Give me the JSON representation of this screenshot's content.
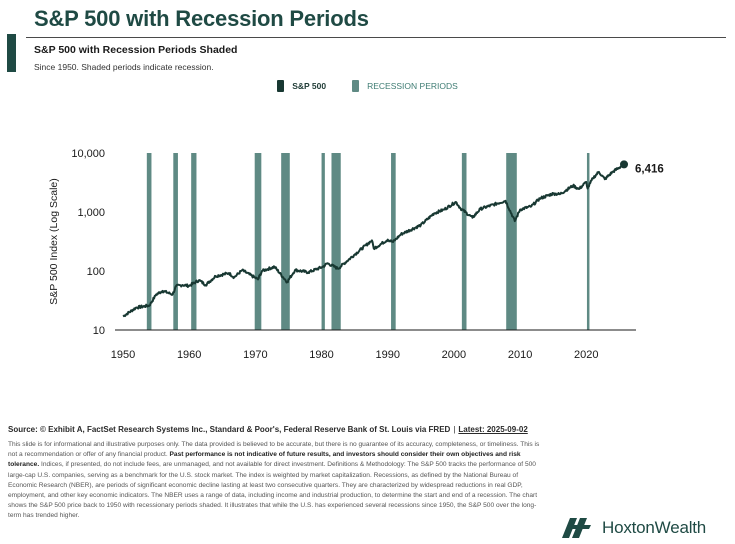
{
  "header": {
    "title": "S&P 500 with Recession Periods",
    "subtitle": "S&P 500 with Recession Periods Shaded",
    "note": "Since 1950. Shaded periods indicate recession."
  },
  "legend": {
    "series_label": "S&P 500",
    "recession_label": "RECESSION PERIODS"
  },
  "colors": {
    "line": "#183832",
    "recession": "#5f8a84",
    "title": "#1f4a44"
  },
  "chart_data": {
    "type": "line",
    "title": "",
    "xlabel": "",
    "ylabel": "S&P 500 Index (Log Scale)",
    "yscale": "log",
    "ylim": [
      10,
      10000
    ],
    "xlim": [
      1950,
      2026
    ],
    "xticks": [
      1950,
      1960,
      1970,
      1980,
      1990,
      2000,
      2010,
      2020
    ],
    "yticks": [
      {
        "value": 10,
        "label": "10"
      },
      {
        "value": 100,
        "label": "100"
      },
      {
        "value": 1000,
        "label": "1,000"
      },
      {
        "value": 10000,
        "label": "10,000"
      }
    ],
    "end_label": "6,416",
    "grid": false,
    "legend_position": "top-center",
    "series": [
      {
        "name": "S&P 500",
        "x": [
          1950,
          1952,
          1954,
          1955,
          1956,
          1957.5,
          1958,
          1959,
          1960,
          1961.5,
          1962.5,
          1964,
          1966,
          1966.8,
          1968,
          1970.4,
          1971,
          1972.9,
          1974.8,
          1976,
          1978,
          1980.2,
          1980.9,
          1982.5,
          1985,
          1987.6,
          1987.9,
          1990,
          1990.8,
          1992,
          1995,
          1997,
          1998.5,
          2000.3,
          2001,
          2002.8,
          2004,
          2007.8,
          2009.2,
          2010,
          2011.7,
          2013,
          2015,
          2016,
          2018,
          2018.9,
          2020,
          2020.2,
          2021,
          2021.9,
          2022.8,
          2024,
          2025.7
        ],
        "values": [
          17,
          24,
          26,
          40,
          46,
          40,
          55,
          58,
          56,
          70,
          58,
          82,
          92,
          78,
          103,
          72,
          100,
          118,
          65,
          104,
          95,
          118,
          135,
          110,
          190,
          330,
          240,
          340,
          310,
          420,
          600,
          950,
          1100,
          1480,
          1150,
          800,
          1130,
          1550,
          700,
          1100,
          1250,
          1700,
          2050,
          2000,
          2800,
          2450,
          3230,
          2500,
          3750,
          4780,
          3600,
          4800,
          6416
        ]
      }
    ],
    "recessions": [
      [
        1953.6,
        1954.3
      ],
      [
        1957.6,
        1958.3
      ],
      [
        1960.3,
        1961.1
      ],
      [
        1969.9,
        1970.9
      ],
      [
        1973.9,
        1975.2
      ],
      [
        1980.0,
        1980.5
      ],
      [
        1981.5,
        1982.9
      ],
      [
        1990.5,
        1991.2
      ],
      [
        2001.2,
        2001.9
      ],
      [
        2007.9,
        2009.5
      ],
      [
        2020.1,
        2020.3
      ]
    ]
  },
  "footer": {
    "source": "Source: © Exhibit A, FactSet Research Systems Inc., Standard & Poor's, Federal Reserve Bank of St. Louis via FRED",
    "latest": "Latest: 2025-09-02",
    "disclaimer_1": "This slide is for informational and illustrative purposes only. The data provided is believed to be accurate, but there is no guarantee of its accuracy, completeness, or timeliness. This is not a recommendation or offer of any financial product.",
    "disclaimer_bold": "Past performance is not indicative of future results, and investors should consider their own objectives and risk tolerance.",
    "disclaimer_2": "Indices, if presented, do not include fees, are unmanaged, and not available for direct investment. Definitions & Methodology: The S&P 500 tracks the performance of 500 large-cap U.S. companies, serving as a benchmark for the U.S. stock market. The index is weighted by market capitalization. Recessions, as defined by the National Bureau of Economic Research (NBER), are periods of significant economic decline lasting at least two consecutive quarters. They are characterized by widespread reductions in real GDP, employment, and other key economic indicators. The NBER uses a range of data, including income and industrial production, to determine the start and end of a recession. The chart shows the S&P 500 price back to 1950 with recessionary periods shaded. It illustrates that while the U.S. has experienced several recessions since 1950, the S&P 500 over the long-term has trended higher.",
    "brand": "HoxtonWealth"
  }
}
